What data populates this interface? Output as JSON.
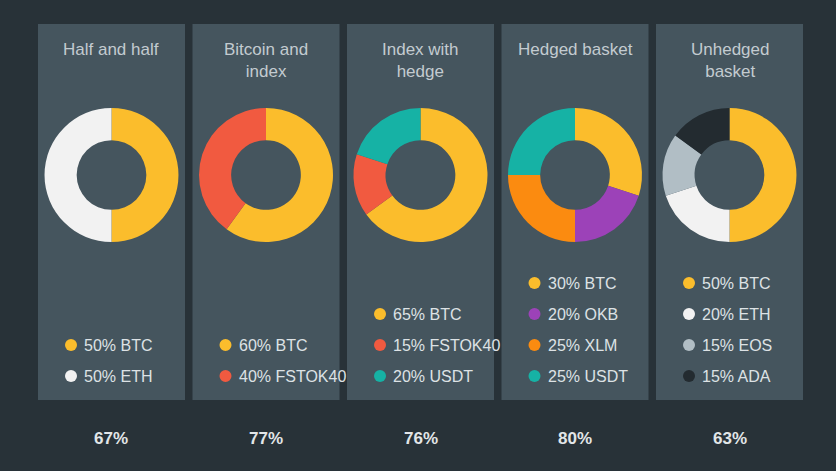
{
  "chart_data": [
    {
      "type": "pie",
      "title": "Half and half",
      "categories": [
        "50% BTC",
        "50% ETH"
      ],
      "values": [
        50,
        50
      ],
      "colors": [
        "#fbbd2c",
        "#f2f2f2"
      ],
      "legend": "bottom",
      "annotations": [
        "67%"
      ]
    },
    {
      "type": "pie",
      "title": "Bitcoin and index",
      "categories": [
        "60% BTC",
        "40% FSTOK40"
      ],
      "values": [
        60,
        40
      ],
      "colors": [
        "#fbbd2c",
        "#f15a40"
      ],
      "legend": "bottom",
      "annotations": [
        "77%"
      ]
    },
    {
      "type": "pie",
      "title": "Index with hedge",
      "categories": [
        "65% BTC",
        "15% FSTOK40",
        "20% USDT"
      ],
      "values": [
        65,
        15,
        20
      ],
      "colors": [
        "#fbbd2c",
        "#f15a40",
        "#16b2a5"
      ],
      "legend": "bottom",
      "annotations": [
        "76%"
      ]
    },
    {
      "type": "pie",
      "title": "Hedged basket",
      "categories": [
        "30% BTC",
        "20% OKB",
        "25% XLM",
        "25% USDT"
      ],
      "values": [
        30,
        20,
        25,
        25
      ],
      "colors": [
        "#fbbd2c",
        "#9c42b8",
        "#fb8b10",
        "#16b2a5"
      ],
      "legend": "bottom",
      "annotations": [
        "80%"
      ]
    },
    {
      "type": "pie",
      "title": "Unhedged basket",
      "categories": [
        "50% BTC",
        "20% ETH",
        "15% EOS",
        "15% ADA"
      ],
      "values": [
        50,
        20,
        15,
        15
      ],
      "colors": [
        "#fbbd2c",
        "#f2f2f2",
        "#b1bec5",
        "#232b30"
      ],
      "legend": "bottom",
      "annotations": [
        "63%"
      ]
    }
  ]
}
